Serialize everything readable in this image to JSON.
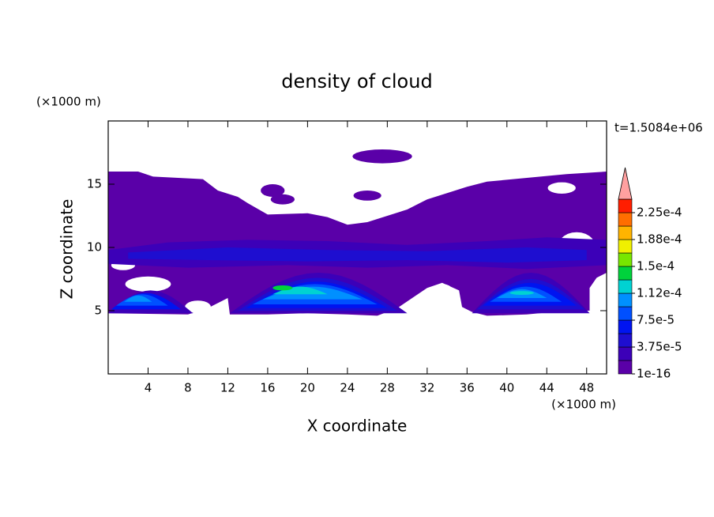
{
  "chart_data": {
    "type": "contourf",
    "title": "density of cloud",
    "x_label": "X coordinate",
    "y_label": "Z coordinate",
    "x_unit_label": "(×1000 m)",
    "y_unit_label": "(×1000 m)",
    "time_label": "t=1.5084e+06",
    "xlim": [
      0,
      50
    ],
    "ylim": [
      0,
      20
    ],
    "xticks": [
      4,
      8,
      12,
      16,
      20,
      24,
      28,
      32,
      36,
      40,
      44,
      48
    ],
    "yticks": [
      5,
      10,
      15
    ],
    "colorbar": {
      "levels": [
        1e-16,
        1.875e-05,
        3.75e-05,
        5.625e-05,
        7.5e-05,
        9.375e-05,
        0.0001125,
        0.00013125,
        0.00015,
        0.00016875,
        0.0001875,
        0.00020625,
        0.000225,
        0.00024375
      ],
      "colors": [
        "#5a00a8",
        "#3c00b8",
        "#1e0ed0",
        "#0014f0",
        "#0050ff",
        "#0090ff",
        "#00d2d2",
        "#00d23c",
        "#78e600",
        "#f0f000",
        "#ffb400",
        "#ff6e00",
        "#ff1e00"
      ],
      "extend_color": "#ffa0a0",
      "ticks": [
        {
          "value": 1e-16,
          "label": "1e-16"
        },
        {
          "value": 3.75e-05,
          "label": "3.75e-5"
        },
        {
          "value": 7.5e-05,
          "label": "7.5e-5"
        },
        {
          "value": 0.0001125,
          "label": "1.12e-4"
        },
        {
          "value": 0.00015,
          "label": "1.5e-4"
        },
        {
          "value": 0.0001875,
          "label": "1.88e-4"
        },
        {
          "value": 0.000225,
          "label": "2.25e-4"
        }
      ]
    }
  }
}
